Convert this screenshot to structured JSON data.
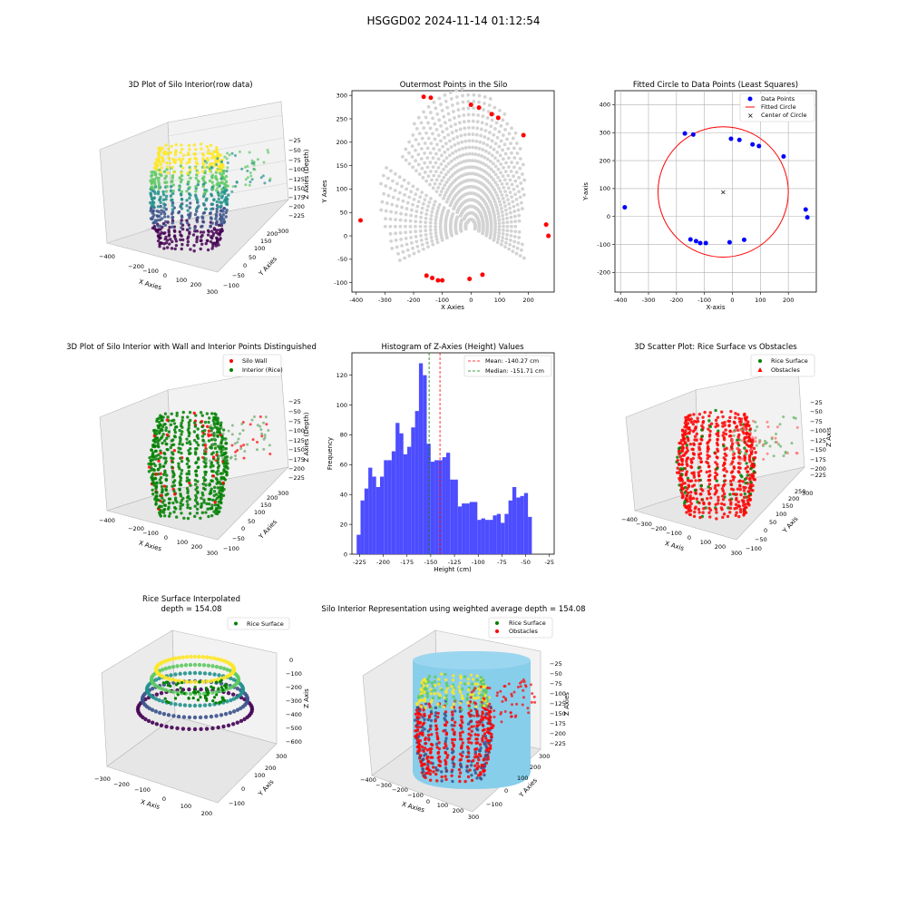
{
  "suptitle": "HSGGD02 2024-11-14 01:12:54",
  "colors": {
    "points_gray": "#d3d3d3",
    "red": "#ff0000",
    "blue": "#0000ff",
    "green": "#008000",
    "hist_bar": "#4d4dff",
    "silo_wall_fill": "#87ceeb",
    "viridis": [
      "#440154",
      "#3b528b",
      "#21918c",
      "#5ec962",
      "#fde725"
    ]
  },
  "chart_data": [
    {
      "id": "p1",
      "type": "scatter3d",
      "title": "3D Plot of Silo Interior(row data)",
      "xlabel": "X Axies",
      "ylabel": "Y Axies",
      "zlabel": "Z Axies (Depth)",
      "xticks": [
        "−400",
        "−300",
        "−200",
        "−100",
        "0",
        "100",
        "200",
        "300"
      ],
      "yticks": [
        "−100",
        "−50",
        "0",
        "50",
        "100",
        "150",
        "200",
        "250",
        "300"
      ],
      "zticks": [
        "−25",
        "−50",
        "−75",
        "−100",
        "−125",
        "−150",
        "−175",
        "−200",
        "−225"
      ],
      "colormap": "viridis"
    },
    {
      "id": "p2",
      "type": "scatter",
      "title": "Outermost Points in the Silo",
      "xlabel": "X Axies",
      "ylabel": "Y Axies",
      "xlim": [
        -415,
        290
      ],
      "ylim": [
        -120,
        310
      ],
      "xticks": [
        -400,
        -300,
        -200,
        -100,
        0,
        100,
        200
      ],
      "yticks": [
        -100,
        -50,
        0,
        50,
        100,
        150,
        200,
        250,
        300
      ],
      "outer_points": [
        [
          -385,
          33
        ],
        [
          -165,
          297
        ],
        [
          -140,
          295
        ],
        [
          0,
          280
        ],
        [
          28,
          274
        ],
        [
          72,
          260
        ],
        [
          95,
          252
        ],
        [
          183,
          215
        ],
        [
          262,
          24
        ],
        [
          270,
          0
        ],
        [
          -155,
          -85
        ],
        [
          -135,
          -90
        ],
        [
          -115,
          -95
        ],
        [
          -100,
          -95
        ],
        [
          -5,
          -92
        ],
        [
          40,
          -83
        ]
      ],
      "fan_angle_range_deg": [
        -20,
        200
      ],
      "fan_radius_max": 300
    },
    {
      "id": "p3",
      "type": "scatter",
      "title": "Fitted Circle to Data Points (Least Squares)",
      "xlabel": "X-axis",
      "ylabel": "Y-axis",
      "xlim": [
        -420,
        300
      ],
      "ylim": [
        -270,
        450
      ],
      "xticks": [
        -400,
        -300,
        -200,
        -100,
        0,
        100,
        200
      ],
      "yticks": [
        -200,
        -100,
        0,
        100,
        200,
        300,
        400
      ],
      "grid": true,
      "legend": [
        "Data Points",
        "Fitted Circle",
        "Center of Circle"
      ],
      "legend_loc": "upper right",
      "data_points": [
        [
          -385,
          33
        ],
        [
          -170,
          297
        ],
        [
          -140,
          293
        ],
        [
          -5,
          278
        ],
        [
          25,
          274
        ],
        [
          72,
          258
        ],
        [
          95,
          252
        ],
        [
          183,
          215
        ],
        [
          262,
          25
        ],
        [
          268,
          -3
        ],
        [
          -150,
          -82
        ],
        [
          -130,
          -88
        ],
        [
          -115,
          -95
        ],
        [
          -95,
          -95
        ],
        [
          -10,
          -92
        ],
        [
          42,
          -83
        ]
      ],
      "circle_center": [
        -33,
        88
      ],
      "circle_radius": 233
    },
    {
      "id": "p4",
      "type": "scatter3d",
      "title": "3D Plot of Silo Interior with Wall and Interior Points Distinguished",
      "xlabel": "X Axies",
      "ylabel": "Y Axies",
      "zlabel": "Z Axies (Depth)",
      "xticks": [
        "−400",
        "−300",
        "−200",
        "−100",
        "0",
        "100",
        "200",
        "300"
      ],
      "yticks": [
        "−100",
        "−50",
        "0",
        "50",
        "100",
        "150",
        "200",
        "250",
        "300"
      ],
      "zticks": [
        "−25",
        "−50",
        "−75",
        "−100",
        "−125",
        "−150",
        "−175",
        "−200",
        "−225"
      ],
      "legend": [
        "Silo Wall",
        "Interior (Rice)"
      ],
      "legend_loc": "upper right"
    },
    {
      "id": "p5",
      "type": "bar",
      "title": "Histogram of Z-Axies (Height) Values",
      "xlabel": "Height (cm)",
      "ylabel": "Frequency",
      "xlim": [
        -233,
        -20
      ],
      "ylim": [
        0,
        135
      ],
      "xticks": [
        -225,
        -200,
        -175,
        -150,
        -125,
        -100,
        -75,
        -50,
        -25
      ],
      "yticks": [
        0,
        20,
        40,
        60,
        80,
        100,
        120
      ],
      "bin_start": -228,
      "bin_width": 4.1,
      "values": [
        13,
        36,
        44,
        58,
        52,
        45,
        52,
        63,
        63,
        69,
        88,
        81,
        67,
        72,
        85,
        96,
        128,
        120,
        74,
        62,
        63,
        63,
        65,
        68,
        50,
        50,
        32,
        34,
        34,
        35,
        35,
        23,
        24,
        23,
        23,
        26,
        27,
        21,
        27,
        36,
        45,
        38,
        39,
        41,
        25
      ],
      "mean": -140.27,
      "median": -151.71,
      "legend": [
        "Mean: -140.27 cm",
        "Median: -151.71 cm"
      ],
      "legend_loc": "upper right"
    },
    {
      "id": "p6",
      "type": "scatter3d",
      "title": "3D Scatter Plot: Rice Surface vs Obstacles",
      "xlabel": "X Axis",
      "ylabel": "Y Axis",
      "zlabel": "Z Axis",
      "xticks": [
        "−400",
        "−300",
        "−200",
        "−100",
        "0",
        "100",
        "200",
        "300"
      ],
      "yticks": [
        "−100",
        "−50",
        "0",
        "50",
        "100",
        "150",
        "200",
        "250",
        "300"
      ],
      "zticks": [
        "−25",
        "−50",
        "−75",
        "−100",
        "−125",
        "−150",
        "−175",
        "−200",
        "−225"
      ],
      "legend": [
        "Rice Surface",
        "Obstacles"
      ],
      "legend_loc": "upper right"
    },
    {
      "id": "p7",
      "type": "surface3d",
      "title": "Rice Surface Interpolated",
      "subtitle": "depth = 154.08",
      "xlabel": "X Axis",
      "ylabel": "Y Axis",
      "zlabel": "Z Axis",
      "xticks": [
        "−300",
        "−200",
        "−100",
        "0",
        "100",
        "200"
      ],
      "yticks": [
        "−100",
        "0",
        "100",
        "200",
        "300"
      ],
      "zticks": [
        "0",
        "−100",
        "−200",
        "−300",
        "−400",
        "−500",
        "−600"
      ],
      "legend": [
        "Rice Surface"
      ],
      "legend_loc": "upper right",
      "depth": 154.08
    },
    {
      "id": "p8",
      "type": "scatter3d",
      "title": "Silo Interior Representation using weighted average depth = 154.08",
      "xlabel": "X Axies",
      "ylabel": "Y Axies",
      "zlabel": "Z Axies",
      "xticks": [
        "−400",
        "−300",
        "−200",
        "−100",
        "0",
        "100",
        "200",
        "300"
      ],
      "yticks": [
        "−100",
        "0",
        "100",
        "200",
        "300"
      ],
      "zticks": [
        "−25",
        "−50",
        "−75",
        "−100",
        "−125",
        "−150",
        "−175",
        "−200",
        "−225"
      ],
      "legend": [
        "Rice Surface",
        "Obstacles"
      ],
      "legend_loc": "upper left",
      "depth": 154.08
    }
  ]
}
